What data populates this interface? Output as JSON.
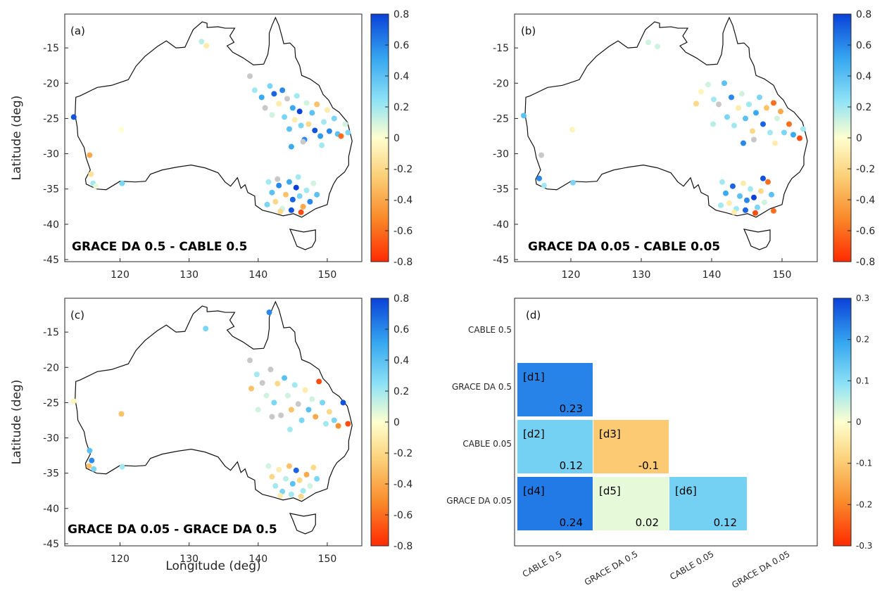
{
  "chart_data": [
    {
      "panel": "(a)",
      "type": "scatter",
      "comparison_label": "GRACE DA 0.5 - CABLE 0.5",
      "ylabel": "Latitude (deg)",
      "xlabel": "",
      "xlim": [
        112,
        155
      ],
      "ylim": [
        -45.3,
        -10.2
      ],
      "xticks": [
        120,
        130,
        140,
        150
      ],
      "yticks": [
        -45,
        -40,
        -35,
        -30,
        -25,
        -20,
        -15
      ],
      "colorbar": {
        "range": [
          -0.8,
          0.8
        ],
        "ticks": [
          0.8,
          0.6,
          0.4,
          0.2,
          0,
          -0.2,
          -0.4,
          -0.6,
          -0.8
        ]
      },
      "points": [
        {
          "lon": 113.3,
          "lat": -24.8,
          "v": 0.75
        },
        {
          "lon": 115.6,
          "lat": -30.2,
          "v": -0.4
        },
        {
          "lon": 115.8,
          "lat": -32.9,
          "v": -0.15
        },
        {
          "lon": 116.1,
          "lat": -34.2,
          "v": 0.2
        },
        {
          "lon": 116.5,
          "lat": -34.6,
          "v": 0.05
        },
        {
          "lon": 120.2,
          "lat": -26.6,
          "v": 0
        },
        {
          "lon": 120.3,
          "lat": -34.2,
          "v": 0.3
        },
        {
          "lon": 131.8,
          "lat": -14.1,
          "v": 0.15
        },
        {
          "lon": 132.5,
          "lat": -14.7,
          "v": -0.1
        },
        {
          "lon": 138.8,
          "lat": -19.0,
          "v": null
        },
        {
          "lon": 139.5,
          "lat": -21.0,
          "v": 0.2
        },
        {
          "lon": 140.5,
          "lat": -22.0,
          "v": 0.5
        },
        {
          "lon": 141.0,
          "lat": -23.5,
          "v": null
        },
        {
          "lon": 141.7,
          "lat": -20.4,
          "v": 0.3
        },
        {
          "lon": 142.0,
          "lat": -24.5,
          "v": 0.1
        },
        {
          "lon": 142.3,
          "lat": -21.5,
          "v": 0.7
        },
        {
          "lon": 143.0,
          "lat": -22.9,
          "v": -0.1
        },
        {
          "lon": 143.5,
          "lat": -21.0,
          "v": 0.6
        },
        {
          "lon": 143.8,
          "lat": -24.8,
          "v": 0.3
        },
        {
          "lon": 144.2,
          "lat": -22.2,
          "v": null
        },
        {
          "lon": 144.5,
          "lat": -26.5,
          "v": 0.4
        },
        {
          "lon": 145.0,
          "lat": -23.5,
          "v": 0.5
        },
        {
          "lon": 145.3,
          "lat": -25.2,
          "v": -0.1
        },
        {
          "lon": 145.6,
          "lat": -21.8,
          "v": 0.2
        },
        {
          "lon": 146.0,
          "lat": -24.0,
          "v": 0.8
        },
        {
          "lon": 146.2,
          "lat": -26.0,
          "v": 0.3
        },
        {
          "lon": 146.7,
          "lat": -28.0,
          "v": 0.6
        },
        {
          "lon": 147.0,
          "lat": -22.8,
          "v": 0.1
        },
        {
          "lon": 147.3,
          "lat": -25.8,
          "v": -0.2
        },
        {
          "lon": 147.8,
          "lat": -24.2,
          "v": 0.4
        },
        {
          "lon": 148.2,
          "lat": -26.7,
          "v": 0.75
        },
        {
          "lon": 148.5,
          "lat": -23.0,
          "v": -0.3
        },
        {
          "lon": 149.0,
          "lat": -27.5,
          "v": 0.55
        },
        {
          "lon": 149.5,
          "lat": -25.5,
          "v": 0.2
        },
        {
          "lon": 150.0,
          "lat": -23.8,
          "v": -0.1
        },
        {
          "lon": 150.3,
          "lat": -26.8,
          "v": 0.6
        },
        {
          "lon": 151.0,
          "lat": -25.0,
          "v": 0.3
        },
        {
          "lon": 151.5,
          "lat": -27.2,
          "v": 0.4
        },
        {
          "lon": 152.0,
          "lat": -27.5,
          "v": -0.6
        },
        {
          "lon": 152.6,
          "lat": -25.8,
          "v": 0.1
        },
        {
          "lon": 153.0,
          "lat": -27.0,
          "v": 0.3
        },
        {
          "lon": 144.8,
          "lat": -29.0,
          "v": 0.5
        },
        {
          "lon": 146.5,
          "lat": -28.3,
          "v": null
        },
        {
          "lon": 149.2,
          "lat": -28.8,
          "v": 0.2
        },
        {
          "lon": 141.5,
          "lat": -34.0,
          "v": 0.2
        },
        {
          "lon": 142.0,
          "lat": -35.5,
          "v": 0.4
        },
        {
          "lon": 142.5,
          "lat": -36.8,
          "v": -0.2
        },
        {
          "lon": 143.0,
          "lat": -34.5,
          "v": 0.6
        },
        {
          "lon": 143.5,
          "lat": -37.8,
          "v": 0.1
        },
        {
          "lon": 144.0,
          "lat": -35.8,
          "v": -0.3
        },
        {
          "lon": 144.5,
          "lat": -34.0,
          "v": 0.5
        },
        {
          "lon": 145.0,
          "lat": -36.5,
          "v": 0.7
        },
        {
          "lon": 145.5,
          "lat": -34.8,
          "v": 0.8
        },
        {
          "lon": 146.0,
          "lat": -36.0,
          "v": 0.3
        },
        {
          "lon": 146.5,
          "lat": -37.5,
          "v": -0.4
        },
        {
          "lon": 147.0,
          "lat": -35.2,
          "v": 0.2
        },
        {
          "lon": 147.5,
          "lat": -36.8,
          "v": 0.6
        },
        {
          "lon": 148.0,
          "lat": -34.2,
          "v": 0.1
        },
        {
          "lon": 148.5,
          "lat": -35.8,
          "v": 0.4
        },
        {
          "lon": 143.2,
          "lat": -38.2,
          "v": -0.2
        },
        {
          "lon": 144.8,
          "lat": -38.0,
          "v": 0.75
        },
        {
          "lon": 146.2,
          "lat": -38.3,
          "v": -0.7
        },
        {
          "lon": 141.3,
          "lat": -37.2,
          "v": 0.3
        },
        {
          "lon": 142.8,
          "lat": -33.6,
          "v": null
        },
        {
          "lon": 145.8,
          "lat": -33.3,
          "v": 0.2
        }
      ]
    },
    {
      "panel": "(b)",
      "type": "scatter",
      "comparison_label": "GRACE DA 0.05 - CABLE 0.05",
      "ylabel": "",
      "xlabel": "",
      "xlim": [
        112,
        155
      ],
      "ylim": [
        -45.3,
        -10.2
      ],
      "xticks": [
        120,
        130,
        140,
        150
      ],
      "yticks": [
        -45,
        -40,
        -35,
        -30,
        -25,
        -20,
        -15
      ],
      "colorbar": {
        "range": [
          -0.8,
          0.8
        ],
        "ticks": [
          0.8,
          0.6,
          0.4,
          0.2,
          0,
          -0.2,
          -0.4,
          -0.6,
          -0.8
        ]
      },
      "points": [
        {
          "lon": 113.3,
          "lat": -24.6,
          "v": 0.4
        },
        {
          "lon": 115.8,
          "lat": -30.2,
          "v": null
        },
        {
          "lon": 115.5,
          "lat": -33.5,
          "v": 0.6
        },
        {
          "lon": 116.2,
          "lat": -34.5,
          "v": 0.2
        },
        {
          "lon": 120.2,
          "lat": -26.6,
          "v": -0.05
        },
        {
          "lon": 120.3,
          "lat": -34.1,
          "v": 0.3
        },
        {
          "lon": 131.0,
          "lat": -14.2,
          "v": 0.1
        },
        {
          "lon": 132.3,
          "lat": -14.8,
          "v": 0.1
        },
        {
          "lon": 137.8,
          "lat": -22.9,
          "v": -0.2
        },
        {
          "lon": 138.5,
          "lat": -21.2,
          "v": -0.05
        },
        {
          "lon": 139.5,
          "lat": -20.2,
          "v": 0.1
        },
        {
          "lon": 140.3,
          "lat": -22.3,
          "v": 0.2
        },
        {
          "lon": 141.0,
          "lat": -23.0,
          "v": null
        },
        {
          "lon": 141.8,
          "lat": -20.0,
          "v": 0.4
        },
        {
          "lon": 142.2,
          "lat": -24.8,
          "v": 0.3
        },
        {
          "lon": 142.8,
          "lat": -22.0,
          "v": 0.6
        },
        {
          "lon": 143.2,
          "lat": -26.0,
          "v": 0.2
        },
        {
          "lon": 143.8,
          "lat": -23.5,
          "v": -0.1
        },
        {
          "lon": 144.3,
          "lat": -21.5,
          "v": 0.1
        },
        {
          "lon": 144.8,
          "lat": -25.0,
          "v": 0.4
        },
        {
          "lon": 145.3,
          "lat": -23.0,
          "v": 0.2
        },
        {
          "lon": 145.8,
          "lat": -26.8,
          "v": -0.2
        },
        {
          "lon": 146.3,
          "lat": -24.2,
          "v": 0.5
        },
        {
          "lon": 146.8,
          "lat": -22.0,
          "v": 0.3
        },
        {
          "lon": 147.3,
          "lat": -25.8,
          "v": 0.7
        },
        {
          "lon": 147.8,
          "lat": -23.5,
          "v": -0.3
        },
        {
          "lon": 148.3,
          "lat": -27.0,
          "v": 0.2
        },
        {
          "lon": 148.8,
          "lat": -22.8,
          "v": -0.6
        },
        {
          "lon": 149.3,
          "lat": -25.0,
          "v": 0.1
        },
        {
          "lon": 149.8,
          "lat": -24.0,
          "v": -0.4
        },
        {
          "lon": 150.3,
          "lat": -27.0,
          "v": 0.3
        },
        {
          "lon": 151.0,
          "lat": -25.8,
          "v": -0.6
        },
        {
          "lon": 151.6,
          "lat": -27.3,
          "v": 0.5
        },
        {
          "lon": 152.5,
          "lat": -27.8,
          "v": -0.7
        },
        {
          "lon": 153.0,
          "lat": -26.5,
          "v": 0.2
        },
        {
          "lon": 144.5,
          "lat": -28.5,
          "v": 0.6
        },
        {
          "lon": 146.0,
          "lat": -28.0,
          "v": null
        },
        {
          "lon": 149.0,
          "lat": -28.5,
          "v": -0.1
        },
        {
          "lon": 140.2,
          "lat": -25.8,
          "v": 0.15
        },
        {
          "lon": 141.5,
          "lat": -34.0,
          "v": 0.2
        },
        {
          "lon": 142.0,
          "lat": -35.6,
          "v": 0.5
        },
        {
          "lon": 142.5,
          "lat": -37.0,
          "v": -0.1
        },
        {
          "lon": 143.0,
          "lat": -34.6,
          "v": 0.7
        },
        {
          "lon": 143.5,
          "lat": -37.8,
          "v": 0.2
        },
        {
          "lon": 144.0,
          "lat": -36.0,
          "v": 0.4
        },
        {
          "lon": 144.5,
          "lat": -34.2,
          "v": -0.1
        },
        {
          "lon": 145.0,
          "lat": -36.6,
          "v": 0.6
        },
        {
          "lon": 145.5,
          "lat": -35.0,
          "v": 0.2
        },
        {
          "lon": 146.0,
          "lat": -36.2,
          "v": 0.8
        },
        {
          "lon": 146.5,
          "lat": -37.6,
          "v": 0.3
        },
        {
          "lon": 147.0,
          "lat": -35.3,
          "v": -0.2
        },
        {
          "lon": 147.5,
          "lat": -36.9,
          "v": 0.1
        },
        {
          "lon": 148.0,
          "lat": -34.0,
          "v": -0.6
        },
        {
          "lon": 148.5,
          "lat": -35.8,
          "v": 0.4
        },
        {
          "lon": 143.2,
          "lat": -38.3,
          "v": -0.1
        },
        {
          "lon": 144.8,
          "lat": -38.0,
          "v": 0.7
        },
        {
          "lon": 146.2,
          "lat": -38.4,
          "v": -0.7
        },
        {
          "lon": 141.3,
          "lat": -37.3,
          "v": 0.2
        },
        {
          "lon": 147.3,
          "lat": -33.5,
          "v": 0.75
        },
        {
          "lon": 148.8,
          "lat": -38.1,
          "v": -0.6
        }
      ]
    },
    {
      "panel": "(c)",
      "type": "scatter",
      "comparison_label": "GRACE DA 0.05 - GRACE DA 0.5",
      "ylabel": "Latitude (deg)",
      "xlabel": "Longitude (deg)",
      "xlim": [
        112,
        155
      ],
      "ylim": [
        -45.3,
        -10.2
      ],
      "xticks": [
        120,
        130,
        140,
        150
      ],
      "yticks": [
        -45,
        -40,
        -35,
        -30,
        -25,
        -20,
        -15
      ],
      "colorbar": {
        "range": [
          -0.8,
          0.8
        ],
        "ticks": [
          0.8,
          0.6,
          0.4,
          0.2,
          0,
          -0.2,
          -0.4,
          -0.6,
          -0.8
        ]
      },
      "points": [
        {
          "lon": 113.3,
          "lat": -24.8,
          "v": -0.05
        },
        {
          "lon": 115.6,
          "lat": -31.8,
          "v": 0.4
        },
        {
          "lon": 115.9,
          "lat": -33.2,
          "v": 0.6
        },
        {
          "lon": 116.2,
          "lat": -34.4,
          "v": 0.3
        },
        {
          "lon": 115.5,
          "lat": -34.0,
          "v": -0.3
        },
        {
          "lon": 120.2,
          "lat": -26.6,
          "v": -0.3
        },
        {
          "lon": 120.3,
          "lat": -34.1,
          "v": 0.2
        },
        {
          "lon": 132.4,
          "lat": -14.5,
          "v": 0.3
        },
        {
          "lon": 141.6,
          "lat": -12.2,
          "v": 0.6
        },
        {
          "lon": 138.8,
          "lat": -19.0,
          "v": null
        },
        {
          "lon": 139.0,
          "lat": -23.0,
          "v": -0.3
        },
        {
          "lon": 139.8,
          "lat": -21.0,
          "v": 0.2
        },
        {
          "lon": 140.6,
          "lat": -22.2,
          "v": null
        },
        {
          "lon": 141.2,
          "lat": -24.0,
          "v": 0.1
        },
        {
          "lon": 141.8,
          "lat": -20.3,
          "v": null
        },
        {
          "lon": 142.3,
          "lat": -25.0,
          "v": 0.3
        },
        {
          "lon": 142.8,
          "lat": -22.3,
          "v": -0.2
        },
        {
          "lon": 143.3,
          "lat": -26.8,
          "v": null
        },
        {
          "lon": 143.8,
          "lat": -21.5,
          "v": 0.4
        },
        {
          "lon": 144.3,
          "lat": -24.0,
          "v": 0.1
        },
        {
          "lon": 144.8,
          "lat": -26.0,
          "v": -0.3
        },
        {
          "lon": 145.3,
          "lat": -22.5,
          "v": 0.2
        },
        {
          "lon": 145.8,
          "lat": -25.2,
          "v": null
        },
        {
          "lon": 146.3,
          "lat": -27.5,
          "v": 0.3
        },
        {
          "lon": 146.8,
          "lat": -23.2,
          "v": -0.1
        },
        {
          "lon": 147.3,
          "lat": -26.0,
          "v": 0.4
        },
        {
          "lon": 147.8,
          "lat": -24.5,
          "v": 0.1
        },
        {
          "lon": 148.3,
          "lat": -27.0,
          "v": -0.4
        },
        {
          "lon": 148.8,
          "lat": -22.0,
          "v": -0.7
        },
        {
          "lon": 149.3,
          "lat": -25.0,
          "v": 0.3
        },
        {
          "lon": 149.8,
          "lat": -28.0,
          "v": 0.2
        },
        {
          "lon": 150.3,
          "lat": -26.3,
          "v": -0.2
        },
        {
          "lon": 151.0,
          "lat": -27.5,
          "v": 0.3
        },
        {
          "lon": 151.6,
          "lat": -28.3,
          "v": -0.5
        },
        {
          "lon": 152.3,
          "lat": -25.0,
          "v": 0.75
        },
        {
          "lon": 153.0,
          "lat": -28.0,
          "v": -0.7
        },
        {
          "lon": 142.0,
          "lat": -27.0,
          "v": null
        },
        {
          "lon": 144.6,
          "lat": -28.8,
          "v": 0.2
        },
        {
          "lon": 140.0,
          "lat": -26.0,
          "v": 0.1
        },
        {
          "lon": 141.5,
          "lat": -34.0,
          "v": 0.1
        },
        {
          "lon": 142.0,
          "lat": -35.5,
          "v": -0.2
        },
        {
          "lon": 142.5,
          "lat": -36.8,
          "v": 0.2
        },
        {
          "lon": 143.0,
          "lat": -34.5,
          "v": -0.1
        },
        {
          "lon": 143.5,
          "lat": -37.6,
          "v": 0.3
        },
        {
          "lon": 144.0,
          "lat": -35.8,
          "v": 0.15
        },
        {
          "lon": 144.5,
          "lat": -34.0,
          "v": -0.3
        },
        {
          "lon": 145.0,
          "lat": -36.5,
          "v": 0.4
        },
        {
          "lon": 145.5,
          "lat": -34.6,
          "v": 0.7
        },
        {
          "lon": 146.0,
          "lat": -36.0,
          "v": -0.2
        },
        {
          "lon": 146.5,
          "lat": -37.5,
          "v": 0.2
        },
        {
          "lon": 147.0,
          "lat": -35.2,
          "v": -0.4
        },
        {
          "lon": 147.5,
          "lat": -36.8,
          "v": 0.1
        },
        {
          "lon": 148.0,
          "lat": -34.2,
          "v": -0.2
        },
        {
          "lon": 148.5,
          "lat": -35.8,
          "v": 0.3
        },
        {
          "lon": 143.2,
          "lat": -38.2,
          "v": -0.1
        },
        {
          "lon": 144.8,
          "lat": -38.0,
          "v": 0.2
        },
        {
          "lon": 146.2,
          "lat": -38.3,
          "v": -0.2
        }
      ]
    },
    {
      "panel": "(d)",
      "type": "heatmap",
      "rows": [
        "CABLE 0.5",
        "GRACE DA 0.5",
        "CABLE 0.05",
        "GRACE DA 0.05"
      ],
      "columns": [
        "CABLE 0.5",
        "GRACE DA 0.5",
        "CABLE 0.05",
        "GRACE DA 0.05"
      ],
      "cells": [
        {
          "id": "[d1]",
          "row": 1,
          "col": 0,
          "value": 0.23,
          "label": "0.23"
        },
        {
          "id": "[d2]",
          "row": 2,
          "col": 0,
          "value": 0.12,
          "label": "0.12"
        },
        {
          "id": "[d3]",
          "row": 2,
          "col": 1,
          "value": -0.1,
          "label": "-0.1"
        },
        {
          "id": "[d4]",
          "row": 3,
          "col": 0,
          "value": 0.24,
          "label": "0.24"
        },
        {
          "id": "[d5]",
          "row": 3,
          "col": 1,
          "value": 0.02,
          "label": "0.02"
        },
        {
          "id": "[d6]",
          "row": 3,
          "col": 2,
          "value": 0.12,
          "label": "0.12"
        }
      ],
      "colorbar": {
        "range": [
          -0.3,
          0.3
        ],
        "ticks": [
          0.3,
          0.2,
          0.1,
          0,
          -0.1,
          -0.2,
          -0.3
        ]
      }
    }
  ]
}
